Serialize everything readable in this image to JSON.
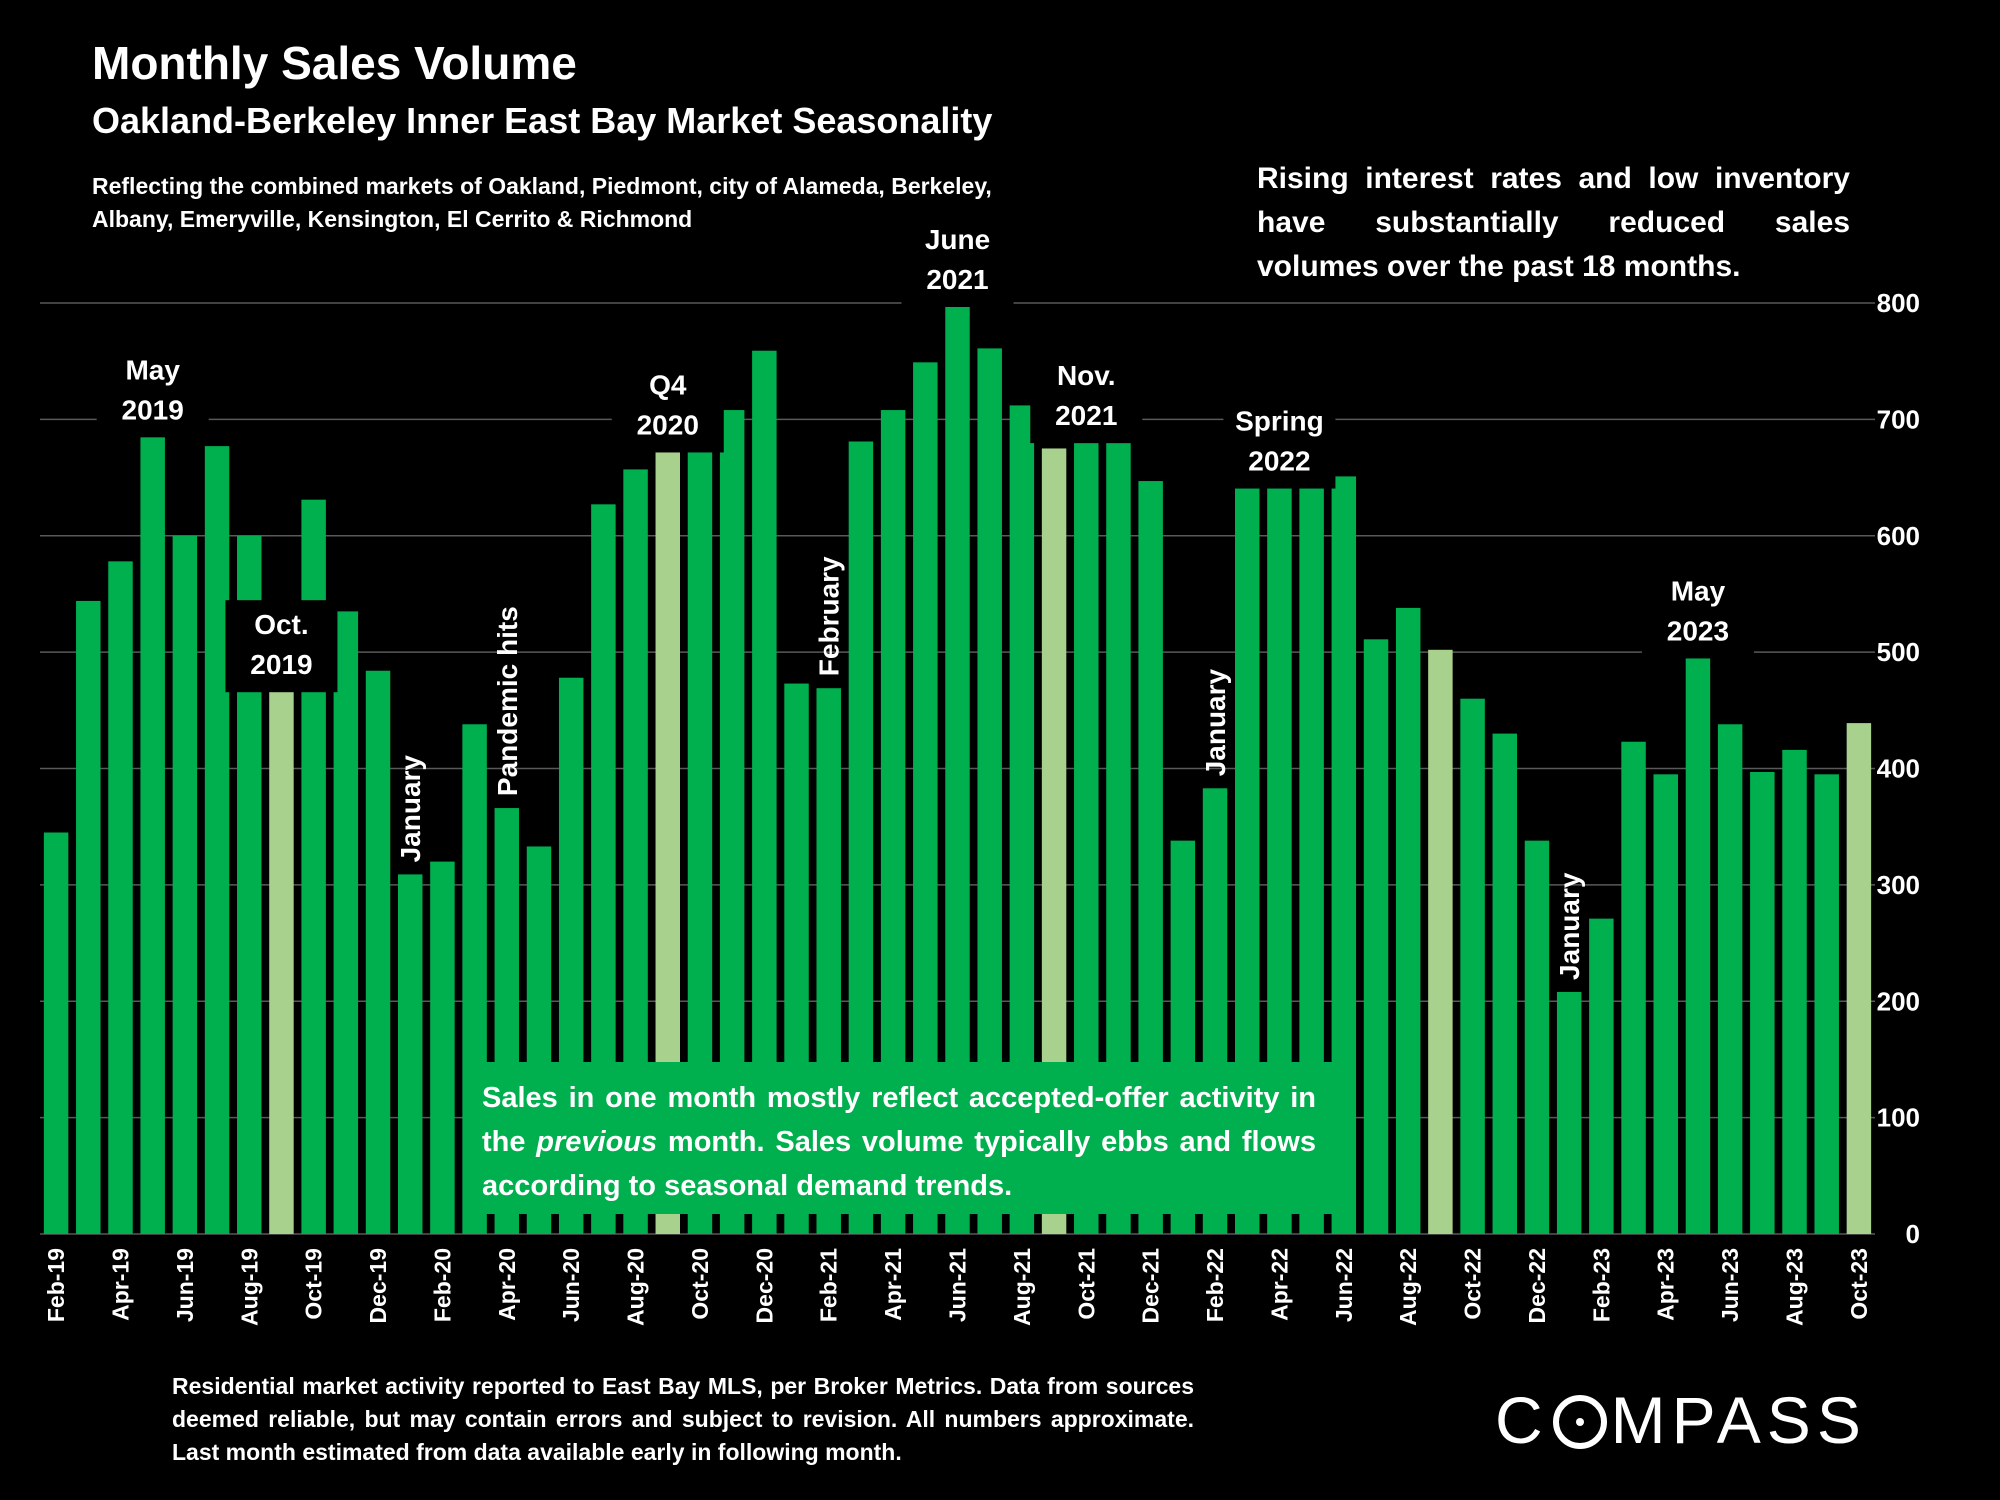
{
  "title": "Monthly Sales Volume",
  "subtitle": "Oakland-Berkeley Inner East Bay Market Seasonality",
  "note": "Reflecting the combined markets of Oakland, Piedmont, city of Alameda, Berkeley, Albany, Emeryville, Kensington, El Cerrito & Richmond",
  "callout": "Rising interest rates and low inventory have substantially reduced sales volumes over the past 18 months.",
  "info_box": {
    "before": "Sales in one month mostly reflect accepted-offer activity in the ",
    "emphasis": "previous",
    "after": " month. Sales volume typically ebbs and flows according to seasonal demand trends."
  },
  "footer": "Residential market activity reported to East Bay MLS, per Broker Metrics. Data from sources deemed reliable, but may contain errors and subject to revision. All numbers approximate. Last month estimated from data available early in following month.",
  "logo": {
    "pre": "C",
    "post": "MPASS"
  },
  "colors": {
    "bar": "#00b04f",
    "highlight": "#a9d18e",
    "background": "#000000",
    "grid": "#595959",
    "text": "#ffffff"
  },
  "chart_data": {
    "type": "bar",
    "ylim": [
      0,
      800
    ],
    "yticks": [
      0,
      100,
      200,
      300,
      400,
      500,
      600,
      700,
      800
    ],
    "grid": true,
    "y_axis_side": "right",
    "categories": [
      "Feb-19",
      "Mar-19",
      "Apr-19",
      "May-19",
      "Jun-19",
      "Jul-19",
      "Aug-19",
      "Sep-19",
      "Oct-19",
      "Nov-19",
      "Dec-19",
      "Jan-20",
      "Feb-20",
      "Mar-20",
      "Apr-20",
      "May-20",
      "Jun-20",
      "Jul-20",
      "Aug-20",
      "Sep-20",
      "Oct-20",
      "Nov-20",
      "Dec-20",
      "Jan-21",
      "Feb-21",
      "Mar-21",
      "Apr-21",
      "May-21",
      "Jun-21",
      "Jul-21",
      "Aug-21",
      "Sep-21",
      "Oct-21",
      "Nov-21",
      "Dec-21",
      "Jan-22",
      "Feb-22",
      "Mar-22",
      "Apr-22",
      "May-22",
      "Jun-22",
      "Jul-22",
      "Aug-22",
      "Sep-22",
      "Oct-22",
      "Nov-22",
      "Dec-22",
      "Jan-23",
      "Feb-23",
      "Mar-23",
      "Apr-23",
      "May-23",
      "Jun-23",
      "Jul-23",
      "Aug-23",
      "Sep-23",
      "Oct-23"
    ],
    "x_tick_labels": [
      "Feb-19",
      "",
      "Apr-19",
      "",
      "Jun-19",
      "",
      "Aug-19",
      "",
      "Oct-19",
      "",
      "Dec-19",
      "",
      "Feb-20",
      "",
      "Apr-20",
      "",
      "Jun-20",
      "",
      "Aug-20",
      "",
      "Oct-20",
      "",
      "Dec-20",
      "",
      "Feb-21",
      "",
      "Apr-21",
      "",
      "Jun-21",
      "",
      "Aug-21",
      "",
      "Oct-21",
      "",
      "Dec-21",
      "",
      "Feb-22",
      "",
      "Apr-22",
      "",
      "Jun-22",
      "",
      "Aug-22",
      "",
      "Oct-22",
      "",
      "Dec-22",
      "",
      "Feb-23",
      "",
      "Apr-23",
      "",
      "Jun-23",
      "",
      "Aug-23",
      "",
      "Oct-23"
    ],
    "values": [
      345,
      544,
      578,
      688,
      600,
      677,
      600,
      469,
      631,
      535,
      484,
      309,
      320,
      438,
      366,
      333,
      478,
      627,
      657,
      675,
      745,
      708,
      759,
      473,
      469,
      681,
      708,
      749,
      800,
      761,
      712,
      675,
      683,
      752,
      647,
      338,
      383,
      664,
      644,
      684,
      651,
      511,
      538,
      502,
      460,
      430,
      338,
      208,
      271,
      423,
      395,
      498,
      438,
      397,
      416,
      395,
      439
    ],
    "highlighted": [
      "Sep-19",
      "Sep-20",
      "Sep-21",
      "Sep-22",
      "Oct-23"
    ],
    "annotations": [
      {
        "at": "May-19",
        "lines": [
          "May",
          "2019"
        ]
      },
      {
        "at": "Sep-19",
        "lines": [
          "Oct.",
          "2019"
        ]
      },
      {
        "at": "Jan-20",
        "lines": [
          "January"
        ],
        "vertical": true
      },
      {
        "at": "Apr-20",
        "lines": [
          "Pandemic hits"
        ],
        "vertical": true
      },
      {
        "at": "Sep-20",
        "lines": [
          "Q4",
          "2020"
        ]
      },
      {
        "at": "Feb-21",
        "lines": [
          "February"
        ],
        "vertical": true
      },
      {
        "at": "Jun-21",
        "lines": [
          "June",
          "2021"
        ]
      },
      {
        "at": "Oct-21",
        "lines": [
          "Nov.",
          "2021"
        ]
      },
      {
        "at": "Feb-22",
        "lines": [
          "January"
        ],
        "vertical": true
      },
      {
        "at": "Apr-22",
        "lines": [
          "Spring",
          "2022"
        ]
      },
      {
        "at": "Jan-23",
        "lines": [
          "January"
        ],
        "vertical": true
      },
      {
        "at": "May-23",
        "lines": [
          "May",
          "2023"
        ]
      }
    ]
  }
}
